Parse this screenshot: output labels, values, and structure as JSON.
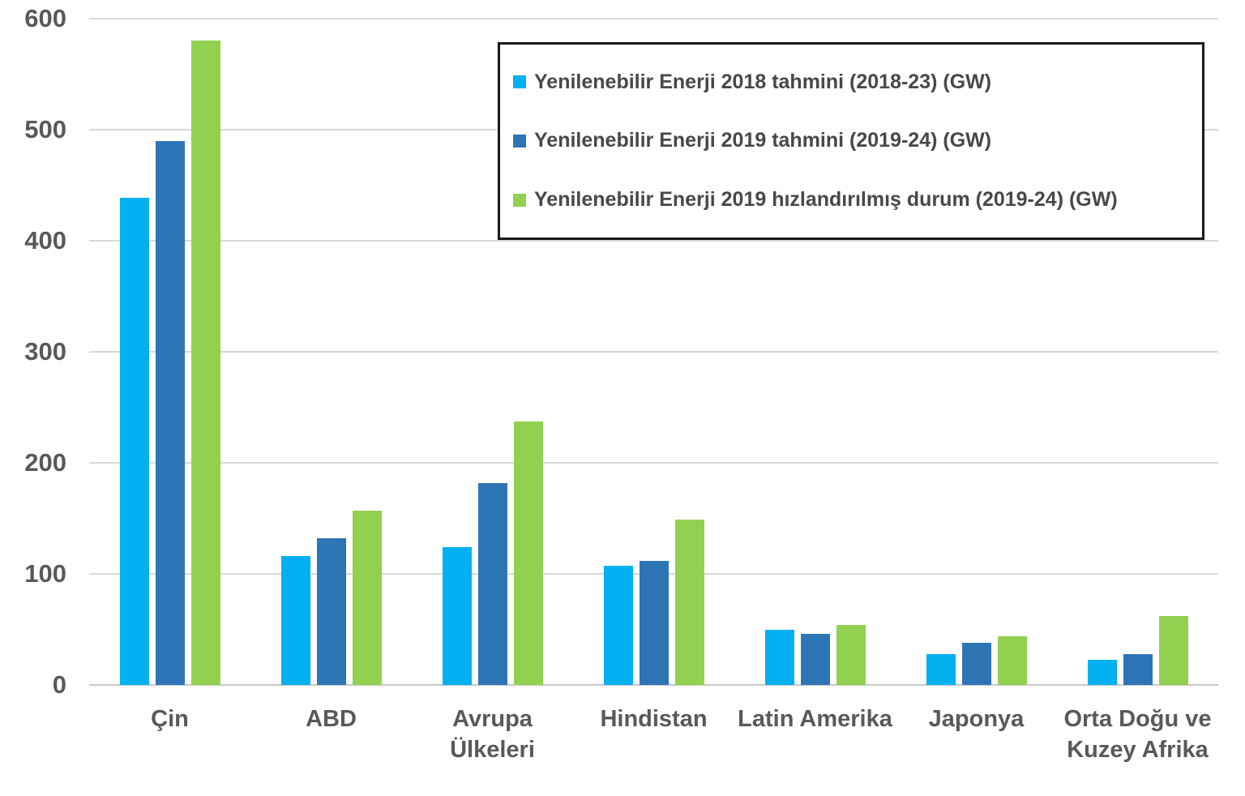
{
  "chart_data": {
    "type": "bar",
    "categories": [
      "Çin",
      "ABD",
      "Avrupa Ülkeleri",
      "Hindistan",
      "Latin Amerika",
      "Japonya",
      "Orta Doğu ve Kuzey Afrika"
    ],
    "series": [
      {
        "name": "Yenilenebilir Enerji 2018 tahmini (2018-23) (GW)",
        "color": "#00B0F0",
        "values": [
          439,
          116,
          124,
          107,
          50,
          28,
          23
        ]
      },
      {
        "name": "Yenilenebilir Enerji 2019 tahmini (2019-24) (GW)",
        "color": "#2E75B6",
        "values": [
          490,
          132,
          182,
          112,
          46,
          38,
          28
        ]
      },
      {
        "name": "Yenilenebilir Enerji 2019 hızlandırılmış durum (2019-24) (GW)",
        "color": "#92D050",
        "values": [
          580,
          157,
          237,
          149,
          54,
          44,
          62
        ]
      }
    ],
    "title": "",
    "xlabel": "",
    "ylabel": "",
    "ylim": [
      0,
      600
    ],
    "yticks": [
      0,
      100,
      200,
      300,
      400,
      500,
      600
    ],
    "grid": "horizontal",
    "legend_position": "top-right",
    "colors": {
      "gridline": "#d9d9d9",
      "axis_text": "#595959",
      "legend_text": "#484848",
      "legend_border": "#1a1a1a",
      "background": "#ffffff"
    }
  }
}
